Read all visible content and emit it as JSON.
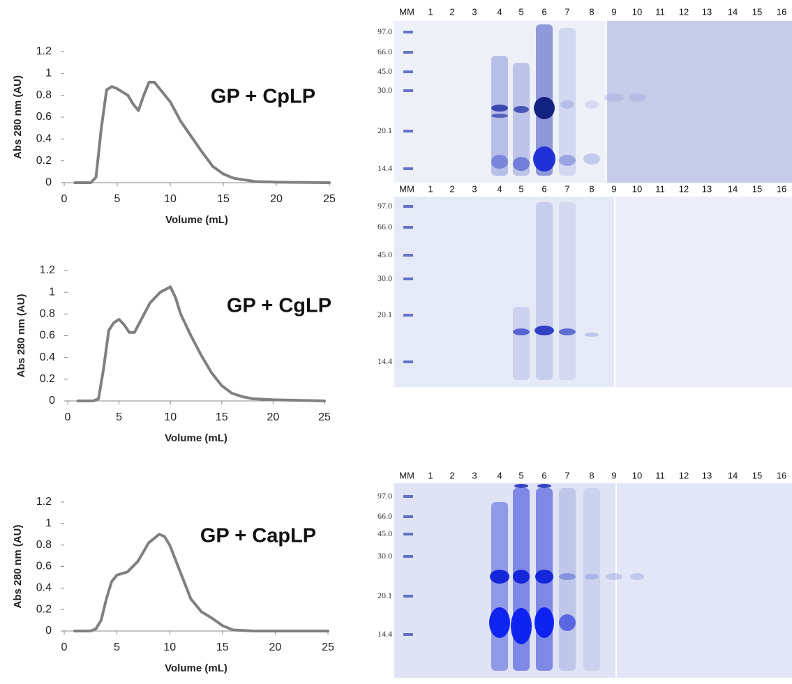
{
  "chart_data": [
    {
      "type": "line",
      "title": "GP + CpLP",
      "ylabel": "Abs 280 nm (AU)",
      "xlabel": "Volume (mL)",
      "x": [
        1,
        2.5,
        3,
        3.5,
        4,
        4.5,
        5,
        6,
        6.5,
        7,
        7.5,
        8,
        8.5,
        9,
        10,
        11,
        12,
        13,
        14,
        15,
        16,
        18,
        20,
        25
      ],
      "values": [
        0,
        0,
        0.05,
        0.5,
        0.85,
        0.88,
        0.86,
        0.8,
        0.72,
        0.66,
        0.8,
        0.92,
        0.92,
        0.86,
        0.74,
        0.56,
        0.42,
        0.28,
        0.15,
        0.08,
        0.04,
        0.01,
        0.005,
        0
      ],
      "color": "#808080",
      "xlim": [
        0,
        25
      ],
      "ylim": [
        0,
        1.2
      ],
      "xticks": [
        0,
        5,
        10,
        15,
        20,
        25
      ],
      "yticks": [
        0,
        0.2,
        0.4,
        0.6,
        0.8,
        1,
        1.2
      ]
    },
    {
      "type": "line",
      "title": "GP + CgLP",
      "ylabel": "Abs 280 nm (AU)",
      "xlabel": "Volume (mL)",
      "x": [
        1,
        2.5,
        3,
        3.5,
        4,
        4.5,
        5,
        5.5,
        6,
        6.5,
        7,
        8,
        9,
        10,
        10.5,
        11,
        12,
        13,
        14,
        15,
        16,
        17,
        18,
        20,
        25
      ],
      "values": [
        0,
        0,
        0.02,
        0.3,
        0.65,
        0.72,
        0.75,
        0.7,
        0.63,
        0.63,
        0.72,
        0.9,
        1.0,
        1.05,
        0.95,
        0.8,
        0.6,
        0.42,
        0.26,
        0.14,
        0.07,
        0.04,
        0.02,
        0.01,
        0
      ],
      "color": "#808080",
      "xlim": [
        0,
        25
      ],
      "ylim": [
        0,
        1.2
      ],
      "xticks": [
        0,
        5,
        10,
        15,
        20,
        25
      ],
      "yticks": [
        0,
        0.2,
        0.4,
        0.6,
        0.8,
        1,
        1.2
      ]
    },
    {
      "type": "line",
      "title": "GP + CapLP",
      "ylabel": "Abs 280 nm (AU)",
      "xlabel": "Volume (mL)",
      "x": [
        1,
        2.5,
        3,
        3.5,
        4,
        4.5,
        5,
        6,
        7,
        8,
        9,
        9.5,
        10,
        11,
        12,
        13,
        14,
        15,
        16,
        18,
        25
      ],
      "values": [
        0,
        0,
        0.02,
        0.1,
        0.3,
        0.46,
        0.52,
        0.55,
        0.65,
        0.82,
        0.9,
        0.88,
        0.8,
        0.55,
        0.3,
        0.18,
        0.12,
        0.05,
        0.01,
        0,
        0
      ],
      "color": "#808080",
      "xlim": [
        0,
        25
      ],
      "ylim": [
        0,
        1.2
      ],
      "xticks": [
        0,
        5,
        10,
        15,
        20,
        25
      ],
      "yticks": [
        0,
        0.2,
        0.4,
        0.6,
        0.8,
        1,
        1.2
      ]
    }
  ],
  "gels": [
    {
      "lanes": [
        "MM",
        "1",
        "2",
        "3",
        "4",
        "5",
        "6",
        "7",
        "8",
        "9",
        "10",
        "11",
        "12",
        "13",
        "14",
        "15",
        "16"
      ],
      "markers": [
        "97.0",
        "66.0",
        "45.0",
        "30.0",
        "20.1",
        "14.4"
      ]
    },
    {
      "lanes": [
        "MM",
        "1",
        "2",
        "3",
        "4",
        "5",
        "6",
        "7",
        "8",
        "9",
        "10",
        "11",
        "12",
        "13",
        "14",
        "15",
        "16"
      ],
      "markers": [
        "97.0",
        "66.0",
        "45.0",
        "30.0",
        "20.1",
        "14.4"
      ]
    },
    {
      "lanes": [
        "MM",
        "1",
        "2",
        "3",
        "4",
        "5",
        "6",
        "7",
        "8",
        "9",
        "10",
        "11",
        "12",
        "13",
        "14",
        "15",
        "16"
      ],
      "markers": [
        "97.0",
        "66.0",
        "45.0",
        "30.0",
        "20.1",
        "14.4"
      ]
    }
  ]
}
